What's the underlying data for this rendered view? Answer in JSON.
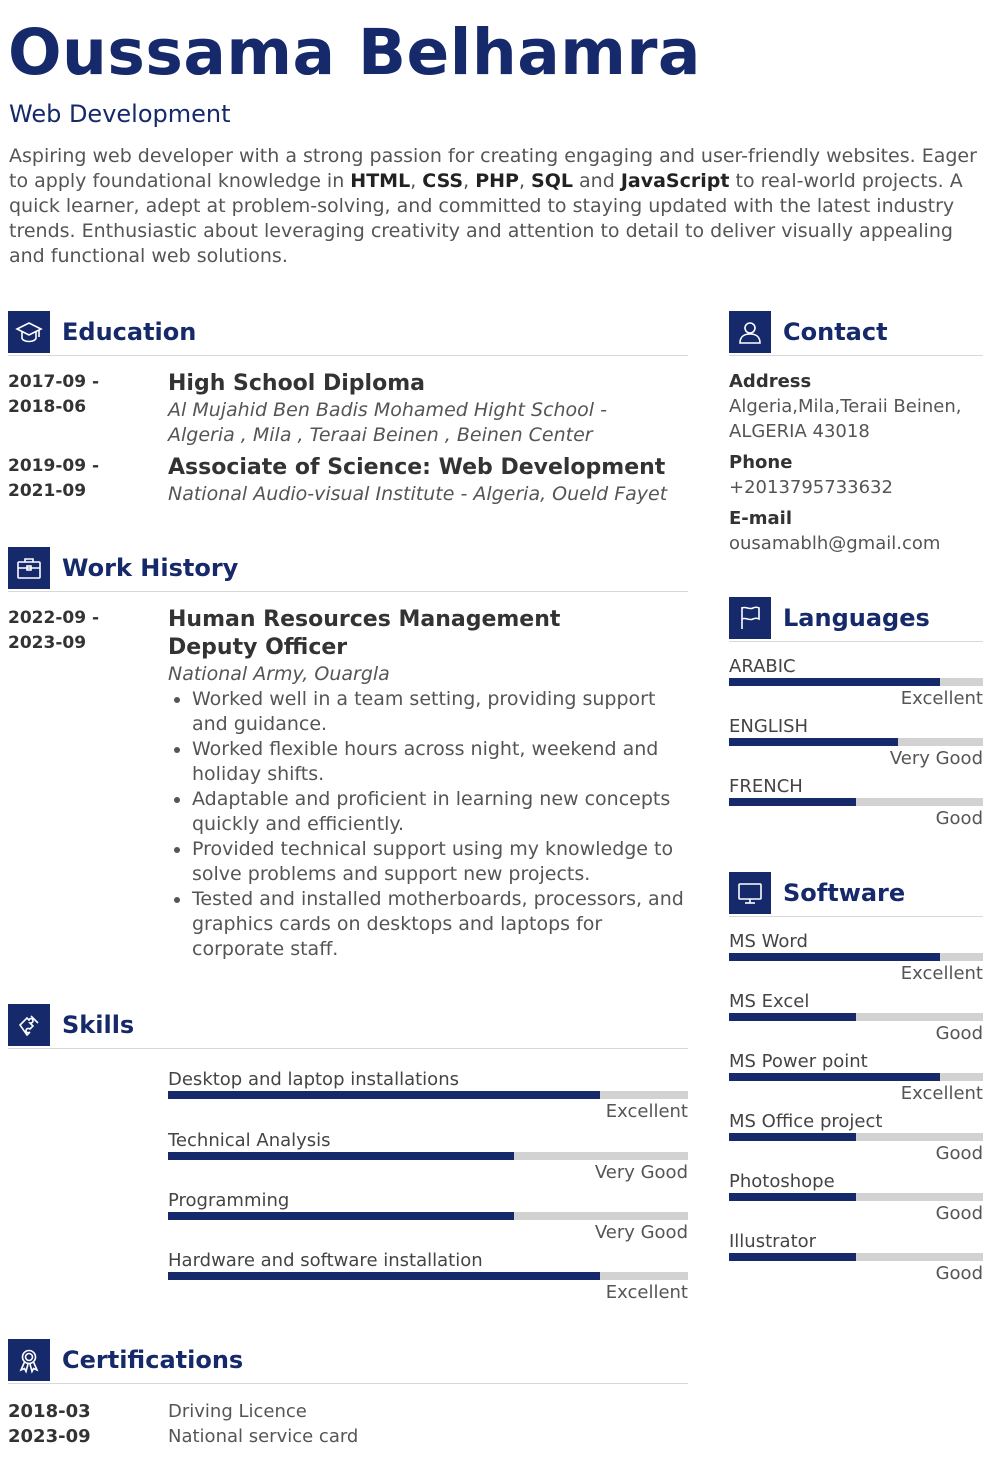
{
  "header": {
    "name": "Oussama Belhamra",
    "role": "Web Development"
  },
  "summary": {
    "parts": [
      {
        "t": "Aspiring web developer with a strong passion for creating engaging and user-friendly websites. Eager to apply foundational knowledge in ",
        "b": false
      },
      {
        "t": "HTML",
        "b": true
      },
      {
        "t": ", ",
        "b": false
      },
      {
        "t": "CSS",
        "b": true
      },
      {
        "t": ", ",
        "b": false
      },
      {
        "t": "PHP",
        "b": true
      },
      {
        "t": ", ",
        "b": false
      },
      {
        "t": "SQL",
        "b": true
      },
      {
        "t": " and ",
        "b": false
      },
      {
        "t": "JavaScript",
        "b": true
      },
      {
        "t": " to real-world projects. A quick learner, adept at problem-solving, and committed to staying updated with the latest industry trends. Enthusiastic about leveraging creativity and attention to detail to deliver visually appealing and functional web solutions.",
        "b": false
      }
    ]
  },
  "education": {
    "title": "Education",
    "items": [
      {
        "date_start": "2017-09 -",
        "date_end": "2018-06",
        "degree": "High School Diploma",
        "school": "Al Mujahid Ben Badis Mohamed Hight School - Algeria , Mila , Teraai Beinen , Beinen Center"
      },
      {
        "date_start": "2019-09 -",
        "date_end": "2021-09",
        "degree": "Associate of Science: Web Development",
        "school": "National Audio-visual Institute - Algeria, Oueld Fayet"
      }
    ]
  },
  "work": {
    "title": "Work History",
    "items": [
      {
        "date_start": "2022-09 -",
        "date_end": "2023-09",
        "position": "Human Resources Management Deputy Officer",
        "company": "National Army, Ouargla",
        "bullets": [
          "Worked well in a team setting, providing support and guidance.",
          "Worked flexible hours across night, weekend and holiday shifts.",
          "Adaptable and proficient in learning new concepts quickly and efficiently.",
          "Provided technical support using my knowledge to solve problems and support new projects.",
          "Tested and installed motherboards, processors, and graphics cards on desktops and laptops for corporate staff."
        ]
      }
    ]
  },
  "skills": {
    "title": "Skills",
    "items": [
      {
        "label": "Desktop and laptop installations",
        "level": "Excellent",
        "value": 0.83
      },
      {
        "label": "Technical Analysis",
        "level": "Very Good",
        "value": 0.665
      },
      {
        "label": "Programming",
        "level": "Very Good",
        "value": 0.665
      },
      {
        "label": "Hardware and software installation",
        "level": "Excellent",
        "value": 0.83
      }
    ]
  },
  "certifications": {
    "title": "Certifications",
    "items": [
      {
        "date": "2018-03",
        "name": "Driving Licence"
      },
      {
        "date": "2023-09",
        "name": "National service card"
      }
    ]
  },
  "contact": {
    "title": "Contact",
    "address_label": "Address",
    "address": "Algeria,Mila,Teraii Beinen, ALGERIA 43018",
    "phone_label": "Phone",
    "phone": "+2013795733632",
    "email_label": "E-mail",
    "email": "ousamablh@gmail.com"
  },
  "languages": {
    "title": "Languages",
    "items": [
      {
        "label": "ARABIC",
        "level": "Excellent",
        "value": 0.83
      },
      {
        "label": "ENGLISH",
        "level": "Very Good",
        "value": 0.665
      },
      {
        "label": "FRENCH",
        "level": "Good",
        "value": 0.5
      }
    ]
  },
  "software": {
    "title": "Software",
    "items": [
      {
        "label": "MS Word",
        "level": "Excellent",
        "value": 0.83
      },
      {
        "label": "MS Excel",
        "level": "Good",
        "value": 0.5
      },
      {
        "label": "MS Power point",
        "level": "Excellent",
        "value": 0.83
      },
      {
        "label": "MS Office project",
        "level": "Good",
        "value": 0.5
      },
      {
        "label": "Photoshope",
        "level": "Good",
        "value": 0.5
      },
      {
        "label": "Illustrator",
        "level": "Good",
        "value": 0.5
      }
    ]
  },
  "icons": {
    "education": "graduation-cap-icon",
    "work": "briefcase-icon",
    "skills": "puzzle-icon",
    "certifications": "award-ribbon-icon",
    "contact": "person-icon",
    "languages": "flag-icon",
    "software": "monitor-icon"
  },
  "colors": {
    "accent": "#15296b",
    "bar_track": "#d2d2d2"
  }
}
